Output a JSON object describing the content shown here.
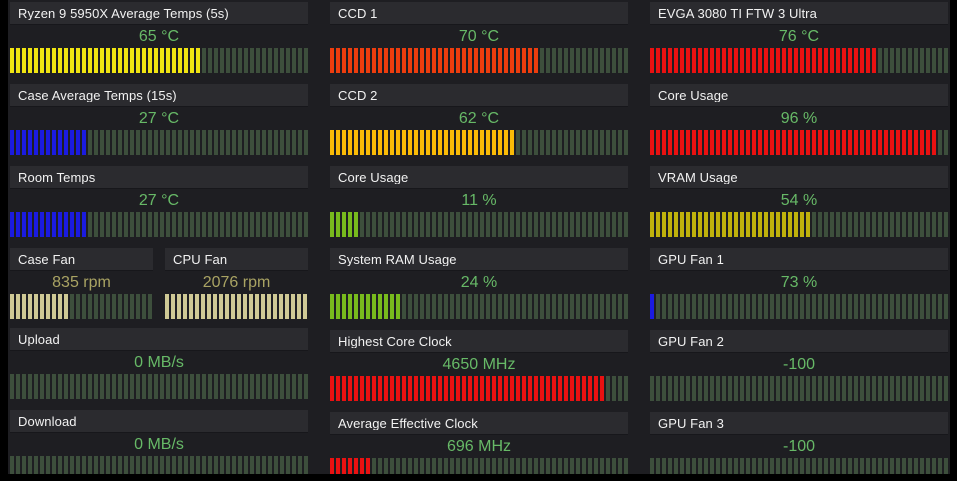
{
  "app": {
    "name": "sensor-panel",
    "background": "#1e1e22",
    "border_color": "#000000",
    "header_bg": "#2b2b2f",
    "label_color": "#f2f2f2",
    "empty_segment_color": "#3d4f3c"
  },
  "value_colors": {
    "green": "#67b967",
    "khaki": "#a9a363"
  },
  "bar_colors": {
    "yellow": "#f0e512",
    "blue": "#1b1be0",
    "orangered": "#ed3d0e",
    "amber": "#f9bb07",
    "lime": "#78ba1d",
    "red": "#e91111",
    "mustard": "#c0b20c",
    "khaki": "#cfc995"
  },
  "columns": [
    {
      "panels": [
        {
          "id": "ryzen-avg-temps",
          "label": "Ryzen 9 5950X Average Temps (5s)",
          "value": "65 °C",
          "value_color": "green",
          "bar_color": "yellow",
          "fill_pct": 65
        },
        {
          "id": "case-avg-temps",
          "label": "Case Average Temps (15s)",
          "value": "27 °C",
          "value_color": "green",
          "bar_color": "blue",
          "fill_pct": 27
        },
        {
          "id": "room-temps",
          "label": "Room Temps",
          "value": "27 °C",
          "value_color": "green",
          "bar_color": "blue",
          "fill_pct": 27
        },
        {
          "cells": [
            {
              "id": "case-fan",
              "label": "Case Fan",
              "value": "835 rpm",
              "value_color": "khaki",
              "bar_color": "khaki",
              "fill_pct": 43
            },
            {
              "id": "cpu-fan",
              "label": "CPU Fan",
              "value": "2076 rpm",
              "value_color": "khaki",
              "bar_color": "khaki",
              "fill_pct": 100
            }
          ]
        },
        {
          "id": "upload",
          "label": "Upload",
          "value": "0 MB/s",
          "value_color": "green",
          "bar_color": "lime",
          "fill_pct": 0
        },
        {
          "id": "download",
          "label": "Download",
          "value": "0 MB/s",
          "value_color": "green",
          "bar_color": "lime",
          "fill_pct": 0
        }
      ]
    },
    {
      "panels": [
        {
          "id": "ccd-1",
          "label": "CCD 1",
          "value": "70 °C",
          "value_color": "green",
          "bar_color": "orangered",
          "fill_pct": 70
        },
        {
          "id": "ccd-2",
          "label": "CCD 2",
          "value": "62 °C",
          "value_color": "green",
          "bar_color": "amber",
          "fill_pct": 62
        },
        {
          "id": "cpu-core-usage",
          "label": "Core Usage",
          "value": "11 %",
          "value_color": "green",
          "bar_color": "lime",
          "fill_pct": 11
        },
        {
          "id": "system-ram-usage",
          "label": "System RAM Usage",
          "value": "24 %",
          "value_color": "green",
          "bar_color": "lime",
          "fill_pct": 24
        },
        {
          "id": "highest-core-clock",
          "label": "Highest Core Clock",
          "value": "4650 MHz",
          "value_color": "green",
          "bar_color": "red",
          "fill_pct": 93
        },
        {
          "id": "average-effective-clock",
          "label": "Average Effective Clock",
          "value": "696 MHz",
          "value_color": "green",
          "bar_color": "red",
          "fill_pct": 14
        }
      ]
    },
    {
      "panels": [
        {
          "id": "gpu-temp",
          "label": "EVGA 3080 TI FTW 3 Ultra",
          "value": "76 °C",
          "value_color": "green",
          "bar_color": "red",
          "fill_pct": 76
        },
        {
          "id": "gpu-core-usage",
          "label": "Core Usage",
          "value": "96 %",
          "value_color": "green",
          "bar_color": "red",
          "fill_pct": 96
        },
        {
          "id": "vram-usage",
          "label": "VRAM Usage",
          "value": "54 %",
          "value_color": "green",
          "bar_color": "mustard",
          "fill_pct": 54
        },
        {
          "id": "gpu-fan-1",
          "label": "GPU Fan 1",
          "value": "73 %",
          "value_color": "green",
          "bar_color": "blue",
          "fill_pct": 2
        },
        {
          "id": "gpu-fan-2",
          "label": "GPU Fan 2",
          "value": "-100",
          "value_color": "green",
          "bar_color": "lime",
          "fill_pct": 0
        },
        {
          "id": "gpu-fan-3",
          "label": "GPU Fan 3",
          "value": "-100",
          "value_color": "green",
          "bar_color": "lime",
          "fill_pct": 0
        }
      ]
    }
  ]
}
